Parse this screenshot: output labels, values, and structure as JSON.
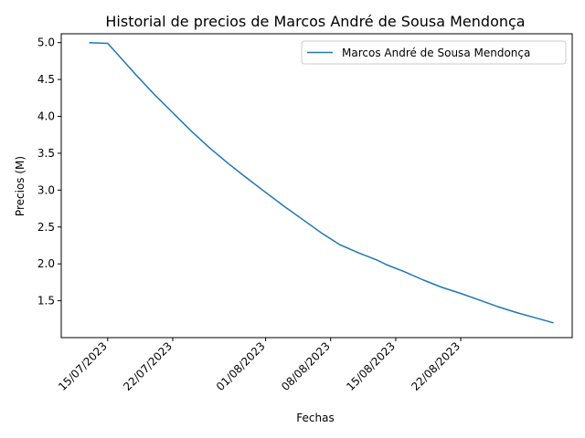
{
  "chart_data": {
    "type": "line",
    "title": "Historial de precios de Marcos André de Sousa Mendonça",
    "xlabel": "Fechas",
    "ylabel": "Precios (M)",
    "x_ticks": [
      "15/07/2023",
      "22/07/2023",
      "01/08/2023",
      "08/08/2023",
      "15/08/2023",
      "22/08/2023"
    ],
    "y_ticks": [
      "1.5",
      "2.0",
      "2.5",
      "3.0",
      "3.5",
      "4.0",
      "4.5",
      "5.0"
    ],
    "ylim": [
      1.0,
      5.12
    ],
    "xlim": [
      "2023-07-10",
      "2023-09-03"
    ],
    "legend": {
      "position": "upper right",
      "entries": [
        "Marcos André de Sousa Mendonça"
      ]
    },
    "grid": false,
    "series": [
      {
        "name": "Marcos André de Sousa Mendonça",
        "color": "#1f77b4",
        "points": [
          {
            "x": "2023-07-13",
            "y": 5.0
          },
          {
            "x": "2023-07-15",
            "y": 4.99
          },
          {
            "x": "2023-07-16",
            "y": 4.85
          },
          {
            "x": "2023-07-18",
            "y": 4.57
          },
          {
            "x": "2023-07-20",
            "y": 4.3
          },
          {
            "x": "2023-07-22",
            "y": 4.05
          },
          {
            "x": "2023-07-24",
            "y": 3.8
          },
          {
            "x": "2023-07-26",
            "y": 3.57
          },
          {
            "x": "2023-07-28",
            "y": 3.36
          },
          {
            "x": "2023-07-30",
            "y": 3.16
          },
          {
            "x": "2023-08-01",
            "y": 2.97
          },
          {
            "x": "2023-08-03",
            "y": 2.78
          },
          {
            "x": "2023-08-05",
            "y": 2.6
          },
          {
            "x": "2023-08-07",
            "y": 2.42
          },
          {
            "x": "2023-08-09",
            "y": 2.26
          },
          {
            "x": "2023-08-11",
            "y": 2.15
          },
          {
            "x": "2023-08-13",
            "y": 2.05
          },
          {
            "x": "2023-08-14",
            "y": 1.99
          },
          {
            "x": "2023-08-16",
            "y": 1.89
          },
          {
            "x": "2023-08-18",
            "y": 1.78
          },
          {
            "x": "2023-08-20",
            "y": 1.68
          },
          {
            "x": "2023-08-22",
            "y": 1.6
          },
          {
            "x": "2023-08-24",
            "y": 1.51
          },
          {
            "x": "2023-08-26",
            "y": 1.42
          },
          {
            "x": "2023-08-28",
            "y": 1.34
          },
          {
            "x": "2023-08-30",
            "y": 1.27
          },
          {
            "x": "2023-09-01",
            "y": 1.2
          }
        ]
      }
    ]
  }
}
